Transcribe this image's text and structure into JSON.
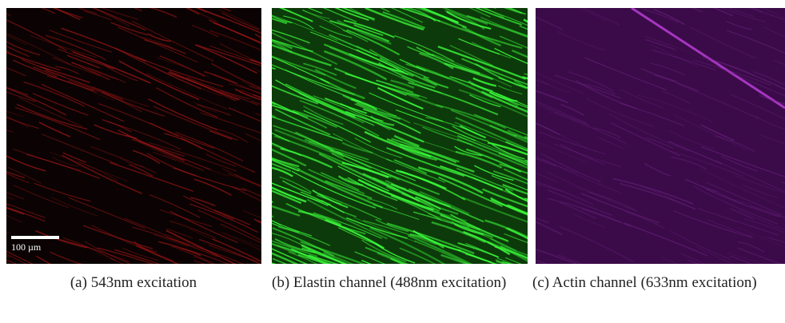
{
  "panels": [
    {
      "label": "(a)",
      "caption": "543nm excitation",
      "scale_bar": "100 µm"
    },
    {
      "label": "(b)",
      "caption": "Elastin channel (488nm excitation)"
    },
    {
      "label": "(c)",
      "caption": "Actin channel (633nm excitation)"
    }
  ]
}
